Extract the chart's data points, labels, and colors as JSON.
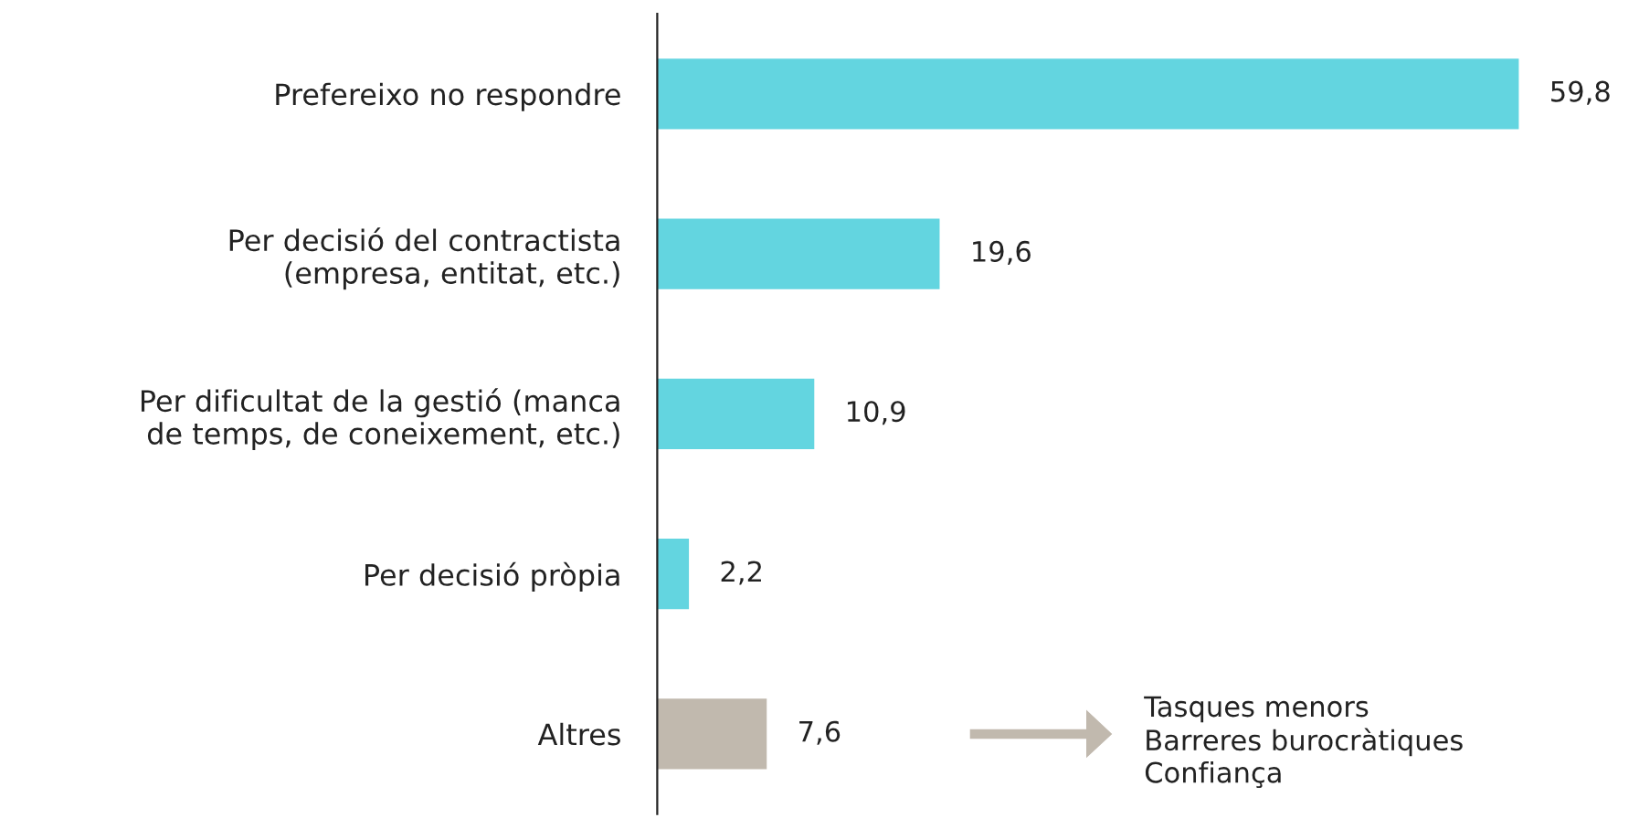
{
  "chart_data": {
    "type": "bar",
    "orientation": "horizontal",
    "categories": [
      "Prefereixo no respondre",
      "Per decisió del contractista\n(empresa, entitat, etc.)",
      "Per dificultat de la gestió (manca\nde temps, de coneixement, etc.)",
      "Per decisió pròpia",
      "Altres"
    ],
    "values": [
      59.8,
      19.6,
      10.9,
      2.2,
      7.6
    ],
    "colors": [
      "#63d5e0",
      "#63d5e0",
      "#63d5e0",
      "#63d5e0",
      "#c1b9ae"
    ],
    "value_labels": [
      "59,8",
      "19,6",
      "10,9",
      "2,2",
      "7,6"
    ],
    "annotations": [
      "Tasques menors\nBarreres burocràtiques\nConfiança"
    ],
    "grid": false,
    "legend": false
  }
}
